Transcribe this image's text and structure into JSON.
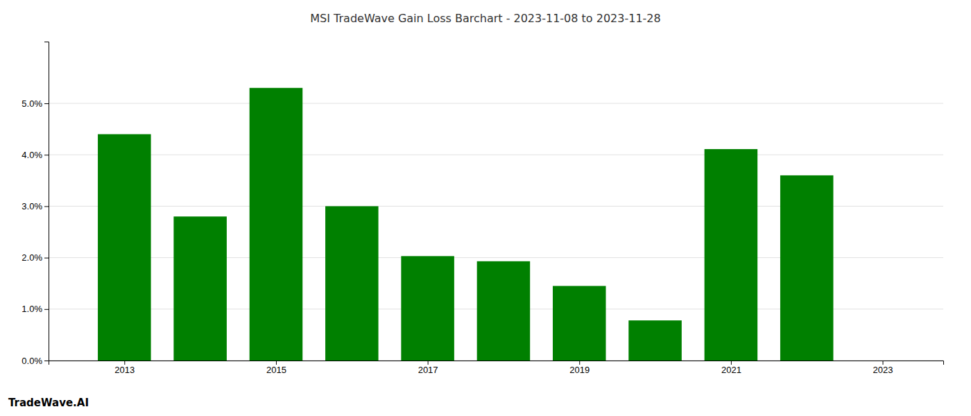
{
  "chart_data": {
    "type": "bar",
    "title": "MSI TradeWave Gain Loss Barchart - 2023-11-08 to 2023-11-28",
    "annotations": [
      "TradeWave.AI"
    ],
    "x": [
      2013,
      2014,
      2015,
      2016,
      2017,
      2018,
      2019,
      2020,
      2021,
      2022
    ],
    "values": [
      0.044,
      0.028,
      0.053,
      0.03,
      0.0203,
      0.0193,
      0.0145,
      0.0078,
      0.0411,
      0.036
    ],
    "color": "#008000",
    "xlim": [
      2012.0,
      2023.8
    ],
    "xticks": [
      2013,
      2015,
      2017,
      2019,
      2021,
      2023
    ],
    "ylim": [
      0,
      0.062
    ],
    "yticks": [
      {
        "value": 0.0,
        "label": "0.0%"
      },
      {
        "value": 0.01,
        "label": "1.0%"
      },
      {
        "value": 0.02,
        "label": "2.0%"
      },
      {
        "value": 0.03,
        "label": "3.0%"
      },
      {
        "value": 0.04,
        "label": "4.0%"
      },
      {
        "value": 0.05,
        "label": "5.0%"
      }
    ],
    "grid": true
  }
}
